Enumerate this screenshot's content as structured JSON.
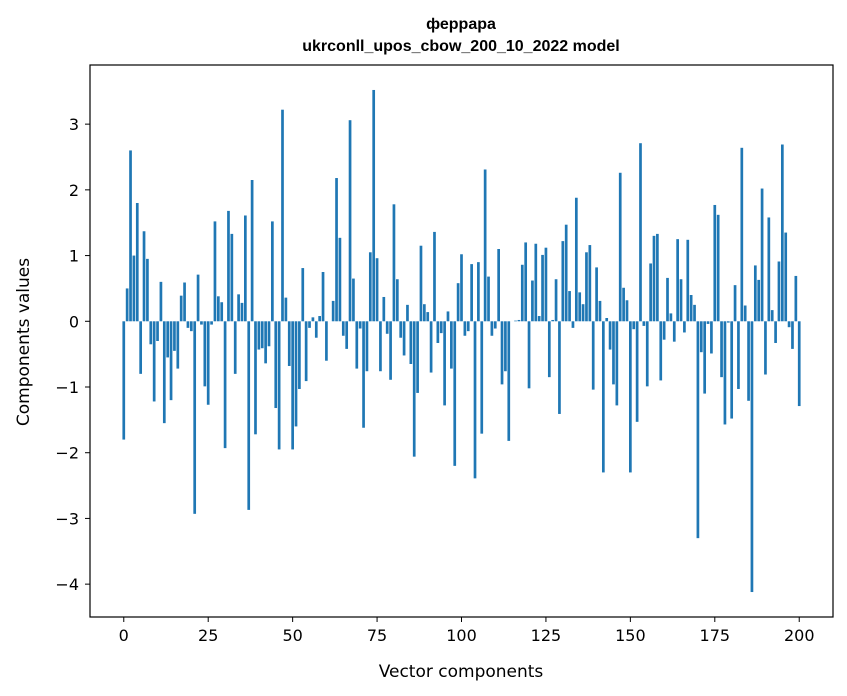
{
  "chart_data": {
    "type": "bar",
    "title_line1": "феррара",
    "title_line2": "ukrconll_upos_cbow_200_10_2022 model",
    "xlabel": "Vector components",
    "ylabel": "Components values",
    "xlim": [
      -10,
      210
    ],
    "ylim": [
      -4.5,
      3.9
    ],
    "xticks": [
      0,
      25,
      50,
      75,
      100,
      125,
      150,
      175,
      200
    ],
    "xtick_labels": [
      "0",
      "25",
      "50",
      "75",
      "100",
      "125",
      "150",
      "175",
      "200"
    ],
    "yticks": [
      -4,
      -3,
      -2,
      -1,
      0,
      1,
      2,
      3
    ],
    "ytick_labels": [
      "−4",
      "−3",
      "−2",
      "−1",
      "0",
      "1",
      "2",
      "3"
    ],
    "grid": false,
    "bar_color": "#1f77b4",
    "values": [
      -1.8,
      0.5,
      2.6,
      1.0,
      1.8,
      -0.8,
      1.37,
      0.95,
      -0.35,
      -1.22,
      -0.3,
      0.6,
      -1.55,
      -0.55,
      -1.2,
      -0.45,
      -0.72,
      0.39,
      0.59,
      -0.1,
      -0.15,
      -2.93,
      0.71,
      -0.05,
      -0.99,
      -1.27,
      -0.05,
      1.52,
      0.38,
      0.29,
      -1.93,
      1.68,
      1.33,
      -0.8,
      0.41,
      0.28,
      1.61,
      -2.87,
      2.15,
      -1.72,
      -0.43,
      -0.41,
      -0.64,
      -0.38,
      1.52,
      -1.32,
      -1.95,
      3.22,
      0.36,
      -0.68,
      -1.95,
      -1.6,
      -1.03,
      0.81,
      -0.91,
      -0.1,
      0.06,
      -0.25,
      0.08,
      0.75,
      -0.6,
      0.0,
      0.31,
      2.18,
      1.27,
      -0.22,
      -0.42,
      3.06,
      0.65,
      -0.72,
      -0.11,
      -1.62,
      -0.76,
      1.05,
      3.52,
      0.96,
      -0.76,
      0.37,
      -0.19,
      -0.89,
      1.78,
      0.64,
      -0.25,
      -0.52,
      0.25,
      -0.65,
      -2.06,
      -1.09,
      1.15,
      0.26,
      0.14,
      -0.78,
      1.36,
      -0.33,
      -0.18,
      -1.28,
      0.15,
      -0.72,
      -2.2,
      0.58,
      1.02,
      -0.22,
      -0.15,
      0.87,
      -2.39,
      0.9,
      -1.71,
      2.31,
      0.68,
      -0.22,
      -0.11,
      1.1,
      -0.96,
      -0.76,
      -1.82,
      0.0,
      0.01,
      0.02,
      0.86,
      1.2,
      -1.02,
      0.62,
      1.18,
      0.08,
      1.01,
      1.12,
      -0.85,
      0.02,
      0.64,
      -1.41,
      1.22,
      1.47,
      0.46,
      -0.1,
      1.88,
      0.44,
      0.26,
      1.05,
      1.16,
      -1.04,
      0.82,
      0.31,
      -2.3,
      0.05,
      -0.43,
      -0.96,
      -1.28,
      2.26,
      0.51,
      0.32,
      -2.3,
      -0.12,
      -1.53,
      2.71,
      -0.07,
      -0.99,
      0.88,
      1.3,
      1.33,
      -0.9,
      -0.28,
      0.66,
      0.12,
      -0.31,
      1.25,
      0.64,
      -0.17,
      1.24,
      0.4,
      0.25,
      -3.3,
      -0.47,
      -1.1,
      -0.04,
      -0.49,
      1.77,
      1.62,
      -0.85,
      -1.57,
      -0.02,
      -1.48,
      0.55,
      -1.03,
      2.64,
      0.24,
      -1.21,
      -4.12,
      0.85,
      0.63,
      2.02,
      -0.81,
      1.58,
      0.17,
      -0.33,
      0.91,
      2.69,
      1.35,
      -0.09,
      -0.42,
      0.69,
      -1.29
    ]
  }
}
